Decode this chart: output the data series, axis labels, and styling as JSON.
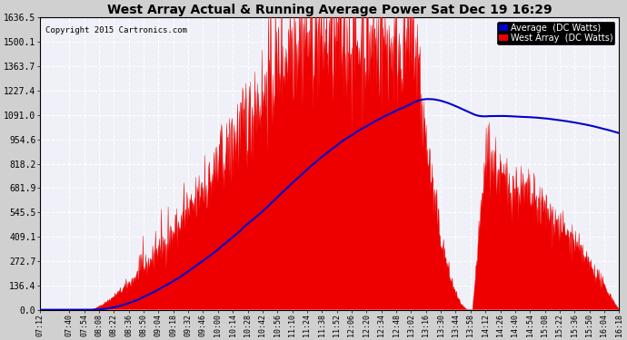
{
  "title": "West Array Actual & Running Average Power Sat Dec 19 16:29",
  "copyright": "Copyright 2015 Cartronics.com",
  "legend_avg": "Average  (DC Watts)",
  "legend_west": "West Array  (DC Watts)",
  "ymin": 0.0,
  "ymax": 1636.5,
  "yticks": [
    0.0,
    136.4,
    272.7,
    409.1,
    545.5,
    681.9,
    818.2,
    954.6,
    1091.0,
    1227.4,
    1363.7,
    1500.1,
    1636.5
  ],
  "bg_color": "#d0d0d0",
  "plot_bg_color": "#e8e8f0",
  "fill_color": "#ee0000",
  "line_color": "#0000cc",
  "figsize": [
    6.9,
    3.75
  ],
  "dpi": 100,
  "xtick_labels": [
    "07:12",
    "07:40",
    "07:54",
    "08:08",
    "08:22",
    "08:36",
    "08:50",
    "09:04",
    "09:18",
    "09:32",
    "09:46",
    "10:00",
    "10:14",
    "10:28",
    "10:42",
    "10:56",
    "11:10",
    "11:24",
    "11:38",
    "11:52",
    "12:06",
    "12:20",
    "12:34",
    "12:48",
    "13:02",
    "13:16",
    "13:30",
    "13:44",
    "13:58",
    "14:12",
    "14:26",
    "14:40",
    "14:54",
    "15:08",
    "15:22",
    "15:36",
    "15:50",
    "16:04",
    "16:18"
  ]
}
